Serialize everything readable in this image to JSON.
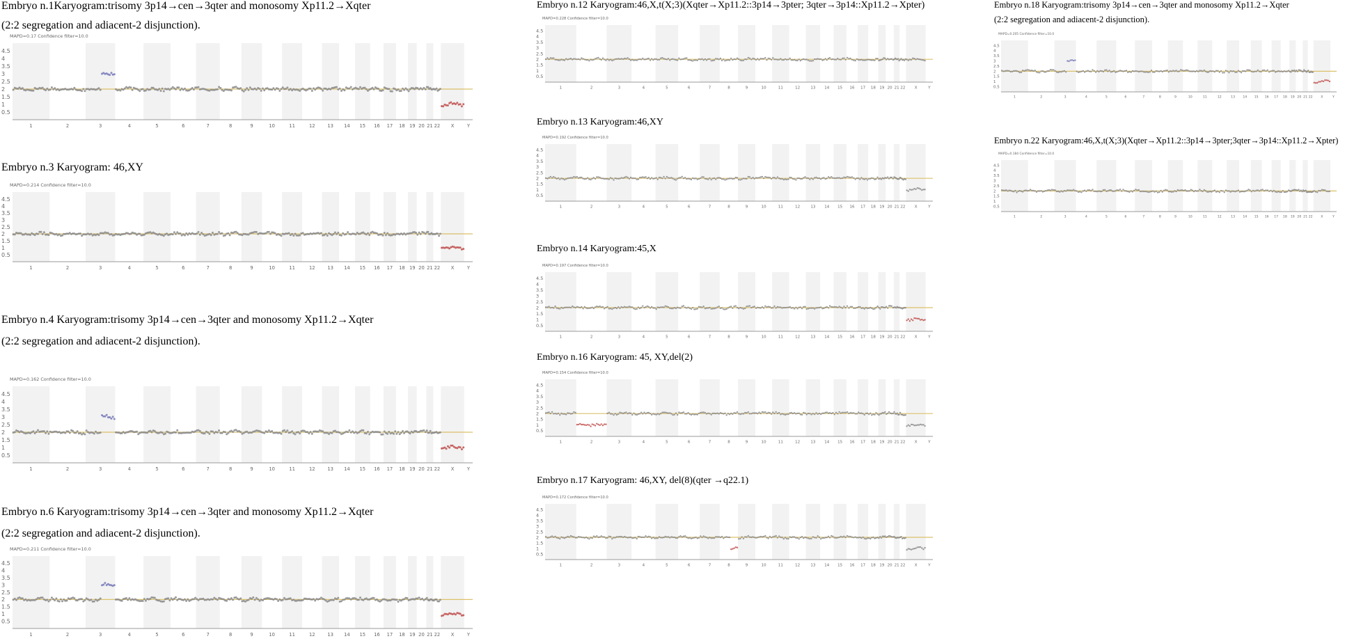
{
  "chart_data": [
    {
      "id": "e1",
      "type": "scatter",
      "title": [
        "Embryo n.1Karyogram:trisomy 3p14→cen→3qter and monosomy Xp11.2→Xqter",
        "(2:2 segregation and adiacent-2 disjunction)."
      ],
      "mapd": "MAPD=0.17 Confidence filter=10.0",
      "yticks": [
        "4.5",
        "4",
        "3.5",
        "3",
        "2.5",
        "2",
        "1.5",
        "1",
        "0.5"
      ],
      "ylim": [
        0,
        5
      ],
      "reference_cn": 2,
      "segments": [
        {
          "chrom": "3",
          "from": 0.0,
          "to": 0.55,
          "cn": 2.0
        },
        {
          "chrom": "3",
          "from": 0.55,
          "to": 1.0,
          "cn": 3.0,
          "color": "#7779b8"
        },
        {
          "chrom": "X",
          "from": 0,
          "to": 1,
          "cn": 1.0,
          "color": "#c0504d"
        }
      ]
    },
    {
      "id": "e3",
      "type": "scatter",
      "title": [
        "Embryo n.3 Karyogram: 46,XY"
      ],
      "mapd": "MAPD=0.214 Confidence filter=10.0",
      "yticks": [
        "4.5",
        "4",
        "3.5",
        "3",
        "2.5",
        "2",
        "1.5",
        "1",
        "0.5"
      ],
      "ylim": [
        0,
        5
      ],
      "reference_cn": 2,
      "segments": [
        {
          "chrom": "X",
          "from": 0,
          "to": 1,
          "cn": 1.0,
          "color": "#c0504d"
        }
      ]
    },
    {
      "id": "e4",
      "type": "scatter",
      "title": [
        "Embryo n.4 Karyogram:trisomy 3p14→cen→3qter and monosomy Xp11.2→Xqter",
        "(2:2 segregation and adiacent-2 disjunction)."
      ],
      "mapd": "MAPD=0.162 Confidence filter=10.0",
      "yticks": [
        "4.5",
        "4",
        "3.5",
        "3",
        "2.5",
        "2",
        "1.5",
        "1",
        "0.5"
      ],
      "ylim": [
        0,
        5
      ],
      "reference_cn": 2,
      "segments": [
        {
          "chrom": "3",
          "from": 0.0,
          "to": 0.55,
          "cn": 2.0
        },
        {
          "chrom": "3",
          "from": 0.55,
          "to": 1.0,
          "cn": 3.0,
          "color": "#7779b8"
        },
        {
          "chrom": "X",
          "from": 0,
          "to": 1,
          "cn": 1.0,
          "color": "#c0504d"
        }
      ]
    },
    {
      "id": "e6",
      "type": "scatter",
      "title": [
        "Embryo n.6 Karyogram:trisomy 3p14→cen→3qter and monosomy Xp11.2→Xqter",
        "(2:2 segregation and adiacent-2 disjunction)."
      ],
      "mapd": "MAPD=0.211 Confidence filter=10.0",
      "yticks": [
        "4.5",
        "4",
        "3.5",
        "3",
        "2.5",
        "2",
        "1.5",
        "1",
        "0.5"
      ],
      "ylim": [
        0,
        5
      ],
      "reference_cn": 2,
      "segments": [
        {
          "chrom": "3",
          "from": 0.0,
          "to": 0.55,
          "cn": 2.0
        },
        {
          "chrom": "3",
          "from": 0.55,
          "to": 1.0,
          "cn": 3.0,
          "color": "#7779b8"
        },
        {
          "chrom": "X",
          "from": 0,
          "to": 1,
          "cn": 1.0,
          "color": "#c0504d"
        }
      ]
    },
    {
      "id": "e12",
      "type": "scatter",
      "title": [
        "Embryo n.12 Karyogram:46,X,t(X;3)(Xqter→Xp11.2::3p14→3pter; 3qter→3p14::Xp11.2→Xpter)"
      ],
      "mapd": "MAPD=0.228 Confidence filter=10.0",
      "yticks": [
        "4.5",
        "4",
        "3.5",
        "3",
        "2.5",
        "2",
        "1.5",
        "1",
        "0.5"
      ],
      "ylim": [
        0,
        5
      ],
      "reference_cn": 2,
      "segments": [
        {
          "chrom": "X",
          "from": 0,
          "to": 1,
          "cn": 2.0
        }
      ]
    },
    {
      "id": "e13",
      "type": "scatter",
      "title": [
        "Embryo n.13 Karyogram:46,XY"
      ],
      "mapd": "MAPD=0.192 Confidence filter=10.0",
      "yticks": [
        "4.5",
        "4",
        "3.5",
        "3",
        "2.5",
        "2",
        "1.5",
        "1",
        "0.5"
      ],
      "ylim": [
        0,
        5
      ],
      "reference_cn": 2,
      "segments": [
        {
          "chrom": "X",
          "from": 0,
          "to": 1,
          "cn": 1.0
        }
      ]
    },
    {
      "id": "e14",
      "type": "scatter",
      "title": [
        "Embryo n.14 Karyogram:45,X"
      ],
      "mapd": "MAPD=0.197 Confidence filter=10.0",
      "yticks": [
        "4.5",
        "4",
        "3.5",
        "3",
        "2.5",
        "2",
        "1.5",
        "1",
        "0.5"
      ],
      "ylim": [
        0,
        5
      ],
      "reference_cn": 2,
      "segments": [
        {
          "chrom": "X",
          "from": 0,
          "to": 1,
          "cn": 1.0,
          "color": "#c0504d"
        }
      ]
    },
    {
      "id": "e16",
      "type": "scatter",
      "title": [
        "Embryo n.16 Karyogram: 45, XY,del(2)"
      ],
      "mapd": "MAPD=0.154 Confidence filter=10.0",
      "yticks": [
        "4.5",
        "4",
        "3.5",
        "3",
        "2.5",
        "2",
        "1.5",
        "1",
        "0.5"
      ],
      "ylim": [
        0,
        5
      ],
      "reference_cn": 2,
      "segments": [
        {
          "chrom": "2",
          "from": 0,
          "to": 1,
          "cn": 1.0,
          "color": "#c0504d"
        },
        {
          "chrom": "X",
          "from": 0,
          "to": 1,
          "cn": 1.0
        }
      ]
    },
    {
      "id": "e17",
      "type": "scatter",
      "title": [
        "Embryo n.17 Karyogram: 46,XY, del(8)(qter →q22.1)"
      ],
      "mapd": "MAPD=0.172 Confidence filter=10.0",
      "yticks": [
        "4.5",
        "4",
        "3.5",
        "3",
        "2.5",
        "2",
        "1.5",
        "1",
        "0.5"
      ],
      "ylim": [
        0,
        5
      ],
      "reference_cn": 2,
      "segments": [
        {
          "chrom": "8",
          "from": 0.0,
          "to": 0.55,
          "cn": 2.0
        },
        {
          "chrom": "8",
          "from": 0.55,
          "to": 1.0,
          "cn": 1.0,
          "color": "#c0504d"
        },
        {
          "chrom": "X",
          "from": 0,
          "to": 1,
          "cn": 1.0
        }
      ]
    },
    {
      "id": "e18",
      "type": "scatter",
      "title": [
        "Embryo n.18 Karyogram:trisomy 3p14→cen→3qter and monosomy Xp11.2→Xqter",
        "(2:2 segregation and adiacent-2 disjunction)."
      ],
      "mapd": "MAPD=0.205 Confidence filter=10.0",
      "yticks": [
        "4.5",
        "4",
        "3.5",
        "3",
        "2.5",
        "2",
        "1.5",
        "1",
        "0.5"
      ],
      "ylim": [
        0,
        5
      ],
      "reference_cn": 2,
      "segments": [
        {
          "chrom": "3",
          "from": 0.0,
          "to": 0.55,
          "cn": 2.0
        },
        {
          "chrom": "3",
          "from": 0.55,
          "to": 1.0,
          "cn": 3.0,
          "color": "#7779b8"
        },
        {
          "chrom": "X",
          "from": 0,
          "to": 1,
          "cn": 1.0,
          "color": "#c0504d"
        }
      ]
    },
    {
      "id": "e22",
      "type": "scatter",
      "title": [
        "Embryo n.22 Karyogram:46,X,t(X;3)(Xqter→Xp11.2::3p14→3pter;3qter→3p14::Xp11.2→Xpter)"
      ],
      "mapd": "MAPD=0.184 Confidence filter=10.0",
      "yticks": [
        "4.5",
        "4",
        "3.5",
        "3",
        "2.5",
        "2",
        "1.5",
        "1",
        "0.5"
      ],
      "ylim": [
        0,
        5
      ],
      "reference_cn": 2,
      "segments": [
        {
          "chrom": "X",
          "from": 0,
          "to": 1,
          "cn": 2.0
        }
      ]
    }
  ],
  "chromosomes": [
    "1",
    "2",
    "3",
    "4",
    "5",
    "6",
    "7",
    "8",
    "9",
    "10",
    "11",
    "12",
    "13",
    "14",
    "15",
    "16",
    "17",
    "18",
    "19",
    "20",
    "21",
    "22",
    "X",
    "Y"
  ],
  "colors": {
    "points": "#8a8a8a",
    "baseline": "#dcc06a",
    "band": "#f2f2f2",
    "axis": "#9a9a9a"
  }
}
